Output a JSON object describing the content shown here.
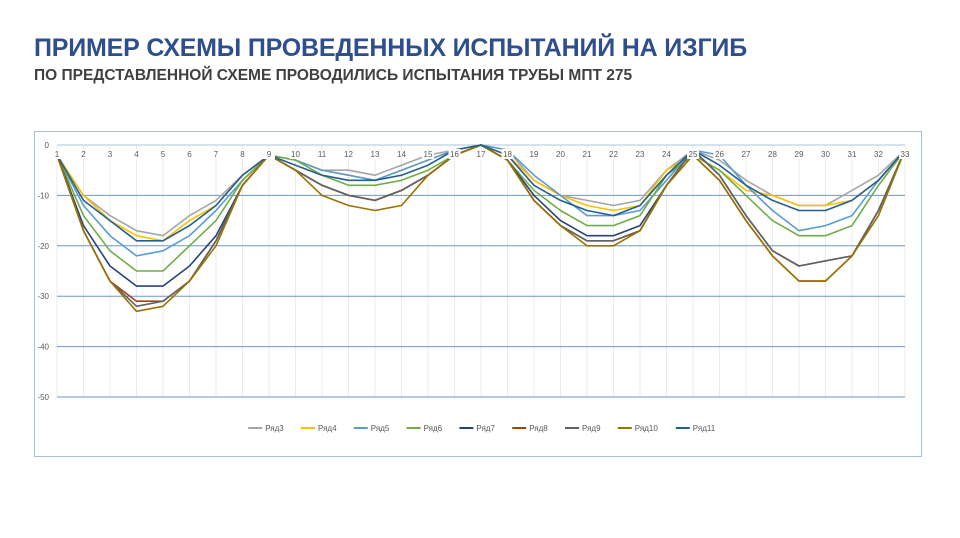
{
  "slide": {
    "title": "ПРИМЕР СХЕМЫ ПРОВЕДЕННЫХ ИСПЫТАНИЙ НА ИЗГИБ",
    "subtitle": "ПО ПРЕДСТАВЛЕННОЙ СХЕМЕ ПРОВОДИЛИСЬ ИСПЫТАНИЯ ТРУБЫ МПТ 275"
  },
  "chart_data": {
    "type": "line",
    "title": "",
    "xlabel": "",
    "ylabel": "",
    "x": [
      1,
      2,
      3,
      4,
      5,
      6,
      7,
      8,
      9,
      10,
      11,
      12,
      13,
      14,
      15,
      16,
      17,
      18,
      19,
      20,
      21,
      22,
      23,
      24,
      25,
      26,
      27,
      28,
      29,
      30,
      31,
      32,
      33
    ],
    "xticks": [
      "1",
      "2",
      "3",
      "4",
      "5",
      "6",
      "7",
      "8",
      "9",
      "10",
      "11",
      "12",
      "13",
      "14",
      "15",
      "16",
      "17",
      "18",
      "19",
      "20",
      "21",
      "22",
      "23",
      "24",
      "25",
      "26",
      "27",
      "28",
      "29",
      "30",
      "31",
      "32",
      "33"
    ],
    "ylim": [
      -50,
      0
    ],
    "yticks": [
      0,
      -10,
      -20,
      -30,
      -40,
      -50
    ],
    "grid": true,
    "legend_position": "bottom",
    "series": [
      {
        "name": "Ряд3",
        "color": "#a5a5a5",
        "values": [
          -2,
          -10,
          -14,
          -17,
          -18,
          -14,
          -11,
          -6,
          -2,
          -3,
          -5,
          -5,
          -6,
          -4,
          -2,
          -1,
          0,
          -1,
          -7,
          -10,
          -11,
          -12,
          -11,
          -5,
          -1,
          -3,
          -7,
          -10,
          -12,
          -12,
          -9,
          -6,
          -1
        ]
      },
      {
        "name": "Ряд4",
        "color": "#ffc000",
        "values": [
          -2,
          -10,
          -15,
          -18,
          -19,
          -15,
          -12,
          -6,
          -2,
          -3,
          -5,
          -6,
          -7,
          -5,
          -3,
          -1,
          0,
          -2,
          -7,
          -10,
          -12,
          -13,
          -12,
          -5,
          -2,
          -5,
          -9,
          -10,
          -12,
          -12,
          -11,
          -7,
          -1
        ]
      },
      {
        "name": "Ряд5",
        "color": "#5b9bd5",
        "values": [
          -2,
          -12,
          -18,
          -22,
          -21,
          -18,
          -13,
          -7,
          -2,
          -3,
          -5,
          -6,
          -7,
          -5,
          -3,
          -1,
          0,
          -1,
          -6,
          -10,
          -14,
          -14,
          -13,
          -7,
          -1,
          -2,
          -8,
          -13,
          -17,
          -16,
          -14,
          -7,
          -1
        ]
      },
      {
        "name": "Ряд6",
        "color": "#70ad47",
        "values": [
          -2,
          -14,
          -21,
          -25,
          -25,
          -20,
          -15,
          -7,
          -2,
          -3,
          -6,
          -8,
          -8,
          -7,
          -5,
          -2,
          0,
          -3,
          -9,
          -13,
          -16,
          -16,
          -14,
          -6,
          -2,
          -5,
          -10,
          -15,
          -18,
          -18,
          -16,
          -8,
          -1
        ]
      },
      {
        "name": "Ряд7",
        "color": "#264478",
        "values": [
          -2,
          -16,
          -24,
          -28,
          -28,
          -24,
          -18,
          -8,
          -2,
          -5,
          -8,
          -10,
          -11,
          -9,
          -6,
          -2,
          0,
          -3,
          -10,
          -15,
          -18,
          -18,
          -16,
          -8,
          -1,
          -6,
          -14,
          -21,
          -24,
          -23,
          -22,
          -13,
          -1
        ]
      },
      {
        "name": "Ряд8",
        "color": "#9e480e",
        "values": [
          -2,
          -17,
          -27,
          -31,
          -31,
          -27,
          -19,
          -8,
          -2,
          -5,
          -8,
          -10,
          -11,
          -9,
          -6,
          -2,
          0,
          -3,
          -11,
          -16,
          -19,
          -19,
          -17,
          -8,
          -2,
          -7,
          -15,
          -22,
          -27,
          -27,
          -22,
          -13,
          -1
        ]
      },
      {
        "name": "Ряд9",
        "color": "#636363",
        "values": [
          -2,
          -17,
          -27,
          -32,
          -31,
          -27,
          -19,
          -8,
          -2,
          -5,
          -8,
          -10,
          -11,
          -9,
          -6,
          -2,
          0,
          -3,
          -11,
          -16,
          -19,
          -19,
          -17,
          -8,
          -1,
          -6,
          -14,
          -21,
          -24,
          -23,
          -22,
          -13,
          -1
        ]
      },
      {
        "name": "Ряд10",
        "color": "#997300",
        "values": [
          -2,
          -17,
          -27,
          -33,
          -32,
          -27,
          -20,
          -8,
          -2,
          -5,
          -10,
          -12,
          -13,
          -12,
          -6,
          -2,
          0,
          -3,
          -11,
          -16,
          -20,
          -20,
          -17,
          -8,
          -2,
          -7,
          -15,
          -22,
          -27,
          -27,
          -22,
          -14,
          -1
        ]
      },
      {
        "name": "Ряд11",
        "color": "#255e91",
        "values": [
          -2,
          -11,
          -15,
          -19,
          -19,
          -16,
          -12,
          -6,
          -2,
          -4,
          -6,
          -7,
          -7,
          -6,
          -4,
          -1,
          0,
          -2,
          -8,
          -11,
          -13,
          -14,
          -12,
          -6,
          -1,
          -4,
          -8,
          -11,
          -13,
          -13,
          -11,
          -7,
          -1
        ]
      }
    ]
  }
}
